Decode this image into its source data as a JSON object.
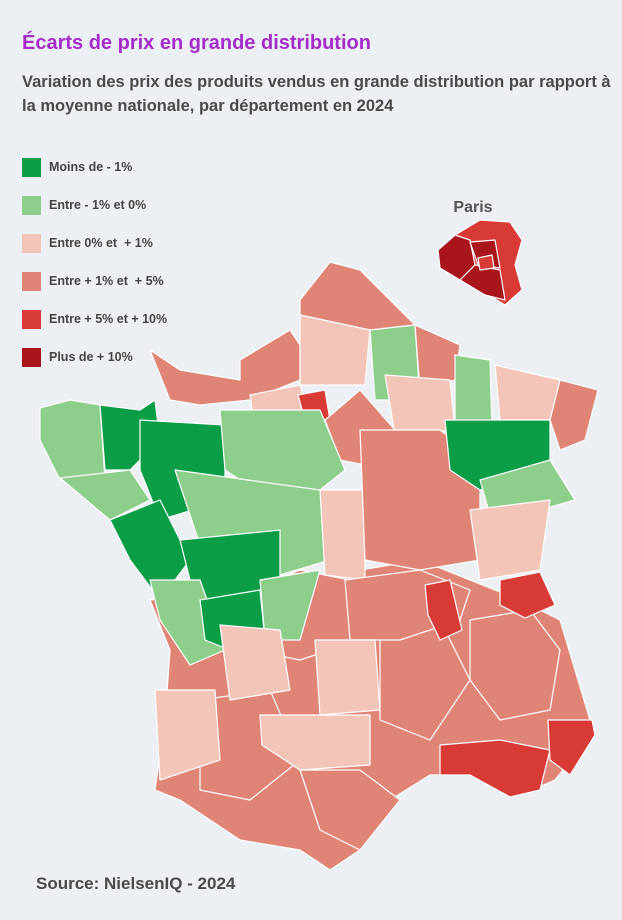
{
  "title": "Écarts de prix en grande distribution",
  "subtitle": "Variation des prix des produits vendus en grande distribution par rapport à la moyenne nationale, par département en 2024",
  "legend": {
    "items": [
      {
        "label": "Moins de - 1%",
        "color": "#0b9e47"
      },
      {
        "label": "Entre - 1% et 0%",
        "color": "#8dce8a"
      },
      {
        "label": "Entre 0% et  + 1%",
        "color": "#f3c5b8"
      },
      {
        "label": "Entre + 1% et  + 5%",
        "color": "#e08575"
      },
      {
        "label": "Entre + 5% et + 10%",
        "color": "#d83b36"
      },
      {
        "label": "Plus de + 10%",
        "color": "#a8161b"
      }
    ]
  },
  "paris_label": "Paris",
  "source": "Source: NielsenIQ - 2024"
}
